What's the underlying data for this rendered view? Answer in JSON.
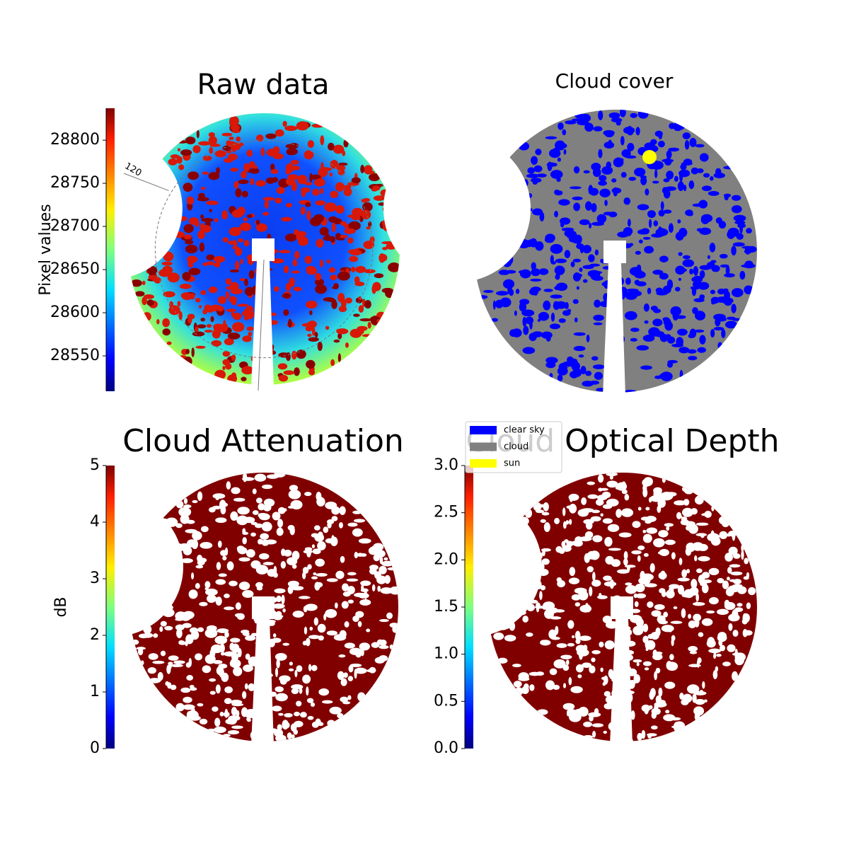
{
  "chart_data": [
    {
      "type": "image",
      "title": "Raw data",
      "annotation": "120",
      "colorbar": {
        "label": "Pixel values",
        "lim": [
          28509,
          28837
        ],
        "ticks": [
          28550,
          28600,
          28650,
          28700,
          28750,
          28800
        ]
      }
    },
    {
      "type": "categorical-image",
      "title": "Cloud cover",
      "series": [
        {
          "name": "clear sky",
          "color": "#0000ff"
        },
        {
          "name": "cloud",
          "color": "#808080"
        },
        {
          "name": "sun",
          "color": "#ffff00"
        }
      ]
    },
    {
      "type": "image",
      "title": "Cloud Attenuation",
      "colorbar": {
        "label": "dB",
        "lim": [
          0,
          5
        ],
        "ticks": [
          0,
          1,
          2,
          3,
          4,
          5
        ]
      }
    },
    {
      "type": "image",
      "title": "Cloud Optical Depth",
      "colorbar": {
        "lim": [
          0,
          3
        ],
        "ticks": [
          {
            "value": 0,
            "label": "0.0"
          },
          {
            "value": 0.5,
            "label": "0.5"
          },
          {
            "value": 1,
            "label": "1.0"
          },
          {
            "value": 1.5,
            "label": "1.5"
          },
          {
            "value": 2,
            "label": "2.0"
          },
          {
            "value": 2.5,
            "label": "2.5"
          },
          {
            "value": 3,
            "label": "3.0"
          }
        ]
      }
    }
  ]
}
